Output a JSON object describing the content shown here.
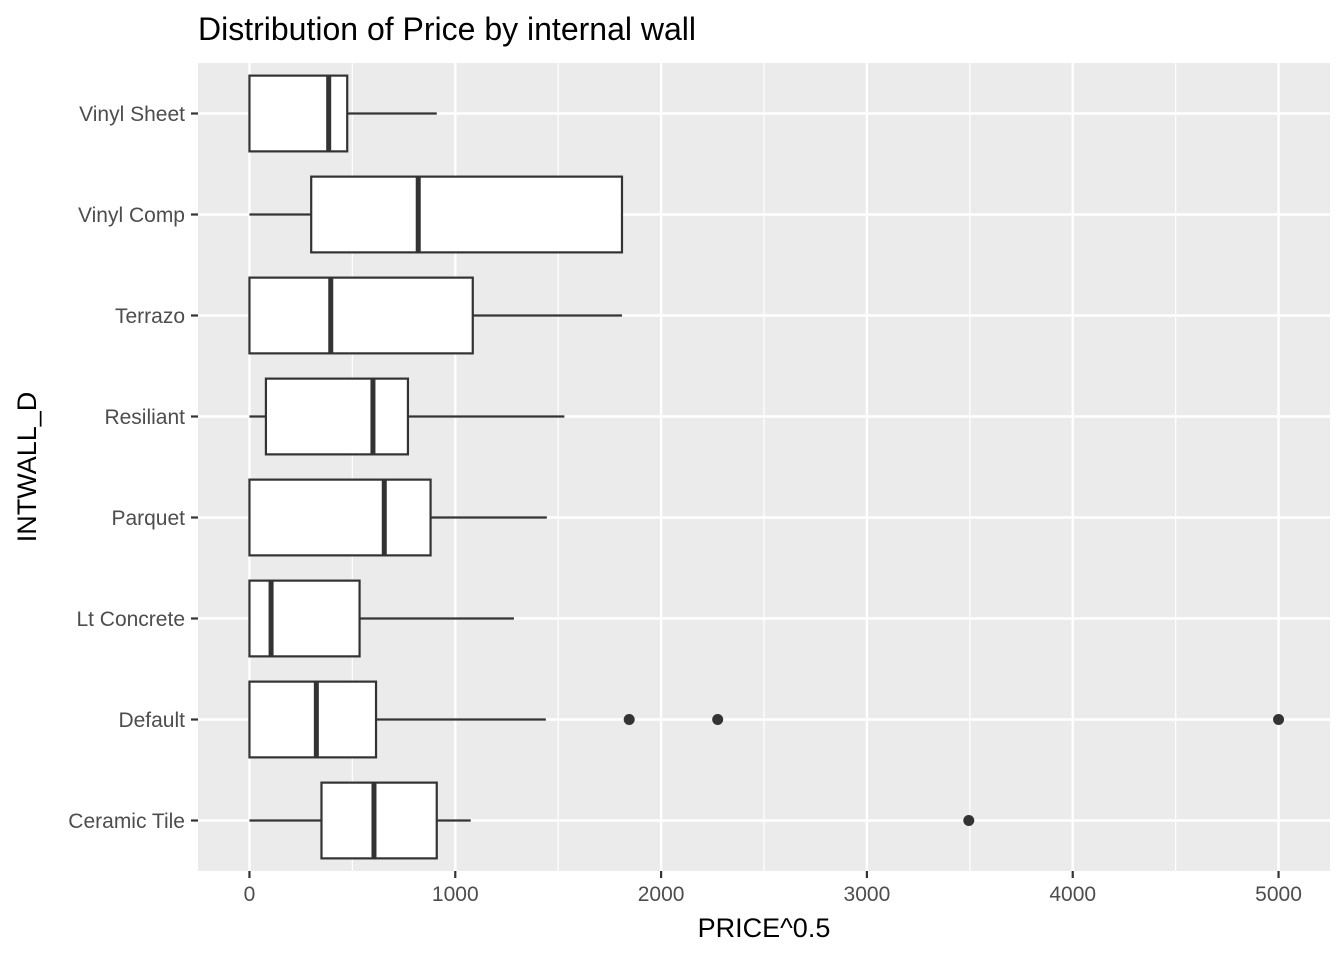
{
  "chart_data": {
    "type": "boxplot",
    "orientation": "horizontal",
    "title": "Distribution of Price by internal wall",
    "xlabel": "PRICE^0.5",
    "ylabel": "INTWALL_D",
    "xlim": [
      -250,
      5250
    ],
    "x_ticks": [
      0,
      1000,
      2000,
      3000,
      4000,
      5000
    ],
    "x_tick_labels": [
      "0",
      "1000",
      "2000",
      "3000",
      "4000",
      "5000"
    ],
    "grid": true,
    "legend": "none",
    "colors": {
      "panel_background": "#ebebeb",
      "grid": "#ffffff",
      "box_fill": "#ffffff",
      "box_stroke": "#333333",
      "outlier": "#333333",
      "tick_label": "#4d4d4d",
      "text": "#000000"
    },
    "categories": [
      "Ceramic Tile",
      "Default",
      "Lt Concrete",
      "Parquet",
      "Resiliant",
      "Terrazo",
      "Vinyl Comp",
      "Vinyl Sheet"
    ],
    "boxes": [
      {
        "category": "Ceramic Tile",
        "whisker_low": 0,
        "q1": 350,
        "median": 605,
        "q3": 910,
        "whisker_high": 1075,
        "outliers": [
          3495
        ]
      },
      {
        "category": "Default",
        "whisker_low": 0,
        "q1": 0,
        "median": 325,
        "q3": 615,
        "whisker_high": 1440,
        "outliers": [
          1845,
          2275,
          5000
        ]
      },
      {
        "category": "Lt Concrete",
        "whisker_low": 0,
        "q1": 0,
        "median": 105,
        "q3": 535,
        "whisker_high": 1285,
        "outliers": []
      },
      {
        "category": "Parquet",
        "whisker_low": 0,
        "q1": 0,
        "median": 655,
        "q3": 880,
        "whisker_high": 1445,
        "outliers": []
      },
      {
        "category": "Resiliant",
        "whisker_low": 0,
        "q1": 80,
        "median": 600,
        "q3": 770,
        "whisker_high": 1530,
        "outliers": []
      },
      {
        "category": "Terrazo",
        "whisker_low": 0,
        "q1": 0,
        "median": 395,
        "q3": 1085,
        "whisker_high": 1810,
        "outliers": []
      },
      {
        "category": "Vinyl Comp",
        "whisker_low": 0,
        "q1": 300,
        "median": 820,
        "q3": 1810,
        "whisker_high": 1810,
        "outliers": []
      },
      {
        "category": "Vinyl Sheet",
        "whisker_low": 0,
        "q1": 0,
        "median": 385,
        "q3": 475,
        "whisker_high": 910,
        "outliers": []
      }
    ]
  }
}
